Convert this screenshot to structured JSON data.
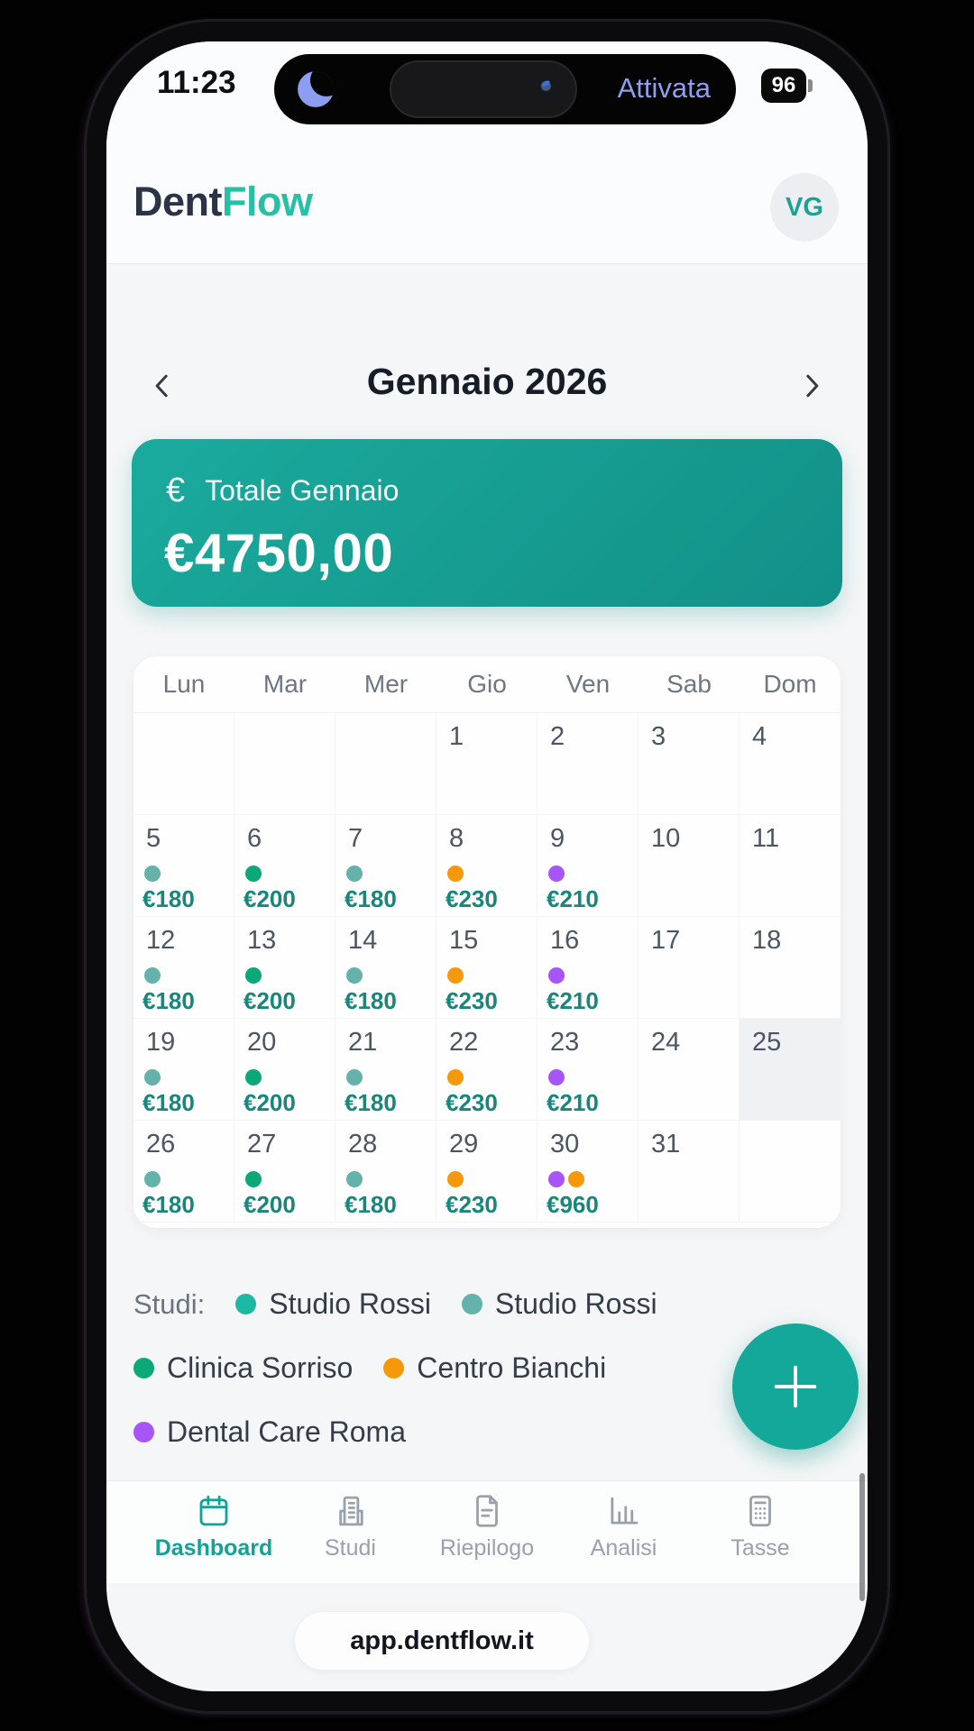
{
  "status_bar": {
    "time": "11:23",
    "island_label": "Attivata",
    "battery": "96"
  },
  "header": {
    "brand_primary": "Dent",
    "brand_accent": "Flow",
    "avatar_initials": "VG"
  },
  "month_nav": {
    "title": "Gennaio 2026"
  },
  "total_card": {
    "euro_symbol": "€",
    "label": "Totale Gennaio",
    "amount": "€4750,00"
  },
  "colors": {
    "teal": "#1db8a4",
    "teal_muted": "#64b2aa",
    "green": "#0ca878",
    "orange": "#f5990b",
    "purple": "#a855f7",
    "accent": "#14a89a"
  },
  "calendar": {
    "weekdays": [
      "Lun",
      "Mar",
      "Mer",
      "Gio",
      "Ven",
      "Sab",
      "Dom"
    ],
    "highlight_day": "25",
    "weeks": [
      [
        {
          "day": ""
        },
        {
          "day": ""
        },
        {
          "day": ""
        },
        {
          "day": "1"
        },
        {
          "day": "2"
        },
        {
          "day": "3"
        },
        {
          "day": "4"
        }
      ],
      [
        {
          "day": "5",
          "dots": [
            "teal_muted"
          ],
          "amount": "€180"
        },
        {
          "day": "6",
          "dots": [
            "green"
          ],
          "amount": "€200"
        },
        {
          "day": "7",
          "dots": [
            "teal_muted"
          ],
          "amount": "€180"
        },
        {
          "day": "8",
          "dots": [
            "orange"
          ],
          "amount": "€230"
        },
        {
          "day": "9",
          "dots": [
            "purple"
          ],
          "amount": "€210"
        },
        {
          "day": "10"
        },
        {
          "day": "11"
        }
      ],
      [
        {
          "day": "12",
          "dots": [
            "teal_muted"
          ],
          "amount": "€180"
        },
        {
          "day": "13",
          "dots": [
            "green"
          ],
          "amount": "€200"
        },
        {
          "day": "14",
          "dots": [
            "teal_muted"
          ],
          "amount": "€180"
        },
        {
          "day": "15",
          "dots": [
            "orange"
          ],
          "amount": "€230"
        },
        {
          "day": "16",
          "dots": [
            "purple"
          ],
          "amount": "€210"
        },
        {
          "day": "17"
        },
        {
          "day": "18"
        }
      ],
      [
        {
          "day": "19",
          "dots": [
            "teal_muted"
          ],
          "amount": "€180"
        },
        {
          "day": "20",
          "dots": [
            "green"
          ],
          "amount": "€200"
        },
        {
          "day": "21",
          "dots": [
            "teal_muted"
          ],
          "amount": "€180"
        },
        {
          "day": "22",
          "dots": [
            "orange"
          ],
          "amount": "€230"
        },
        {
          "day": "23",
          "dots": [
            "purple"
          ],
          "amount": "€210"
        },
        {
          "day": "24"
        },
        {
          "day": "25"
        }
      ],
      [
        {
          "day": "26",
          "dots": [
            "teal_muted"
          ],
          "amount": "€180"
        },
        {
          "day": "27",
          "dots": [
            "green"
          ],
          "amount": "€200"
        },
        {
          "day": "28",
          "dots": [
            "teal_muted"
          ],
          "amount": "€180"
        },
        {
          "day": "29",
          "dots": [
            "orange"
          ],
          "amount": "€230"
        },
        {
          "day": "30",
          "dots": [
            "purple",
            "orange"
          ],
          "amount": "€960"
        },
        {
          "day": "31"
        },
        {
          "day": ""
        }
      ]
    ]
  },
  "legend": {
    "label": "Studi:",
    "items": [
      {
        "name": "Studio Rossi",
        "color": "teal"
      },
      {
        "name": "Studio Rossi",
        "color": "teal_muted"
      },
      {
        "name": "Clinica Sorriso",
        "color": "green"
      },
      {
        "name": "Centro Bianchi",
        "color": "orange"
      },
      {
        "name": "Dental Care Roma",
        "color": "purple"
      }
    ]
  },
  "bottom_nav": {
    "items": [
      {
        "label": "Dashboard",
        "icon": "calendar-icon",
        "active": true
      },
      {
        "label": "Studi",
        "icon": "building-icon",
        "active": false
      },
      {
        "label": "Riepilogo",
        "icon": "document-icon",
        "active": false
      },
      {
        "label": "Analisi",
        "icon": "bar-chart-icon",
        "active": false
      },
      {
        "label": "Tasse",
        "icon": "calculator-icon",
        "active": false
      }
    ]
  },
  "url_bar": {
    "text": "app.dentflow.it"
  }
}
